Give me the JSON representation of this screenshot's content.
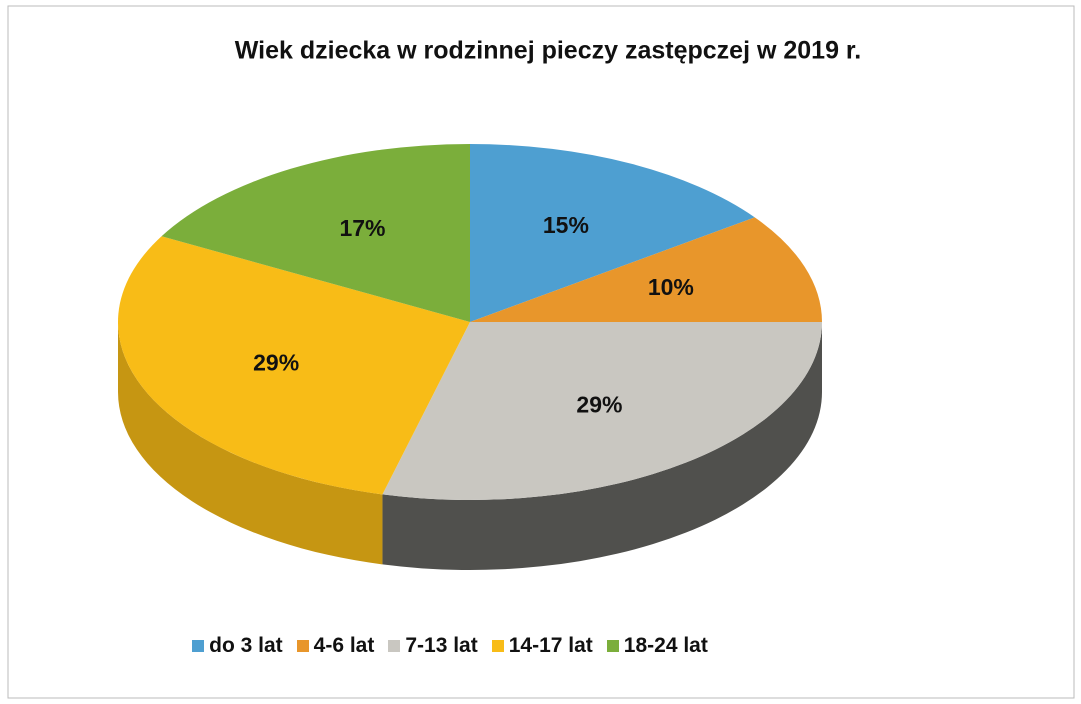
{
  "chart_data": {
    "type": "pie",
    "title": "Wiek dziecka w rodzinnej pieczy zastępczej w 2019 r.",
    "categories": [
      "do 3 lat",
      "4-6 lat",
      "7-13 lat",
      "14-17 lat",
      "18-24 lat"
    ],
    "values": [
      15,
      10,
      29,
      29,
      17
    ],
    "value_labels": [
      "15%",
      "10%",
      "29%",
      "29%",
      "17%"
    ],
    "colors": [
      "#4e9fd1",
      "#e8962b",
      "#c9c7c1",
      "#f8bc17",
      "#7bae3b"
    ],
    "legend": "bottom"
  }
}
